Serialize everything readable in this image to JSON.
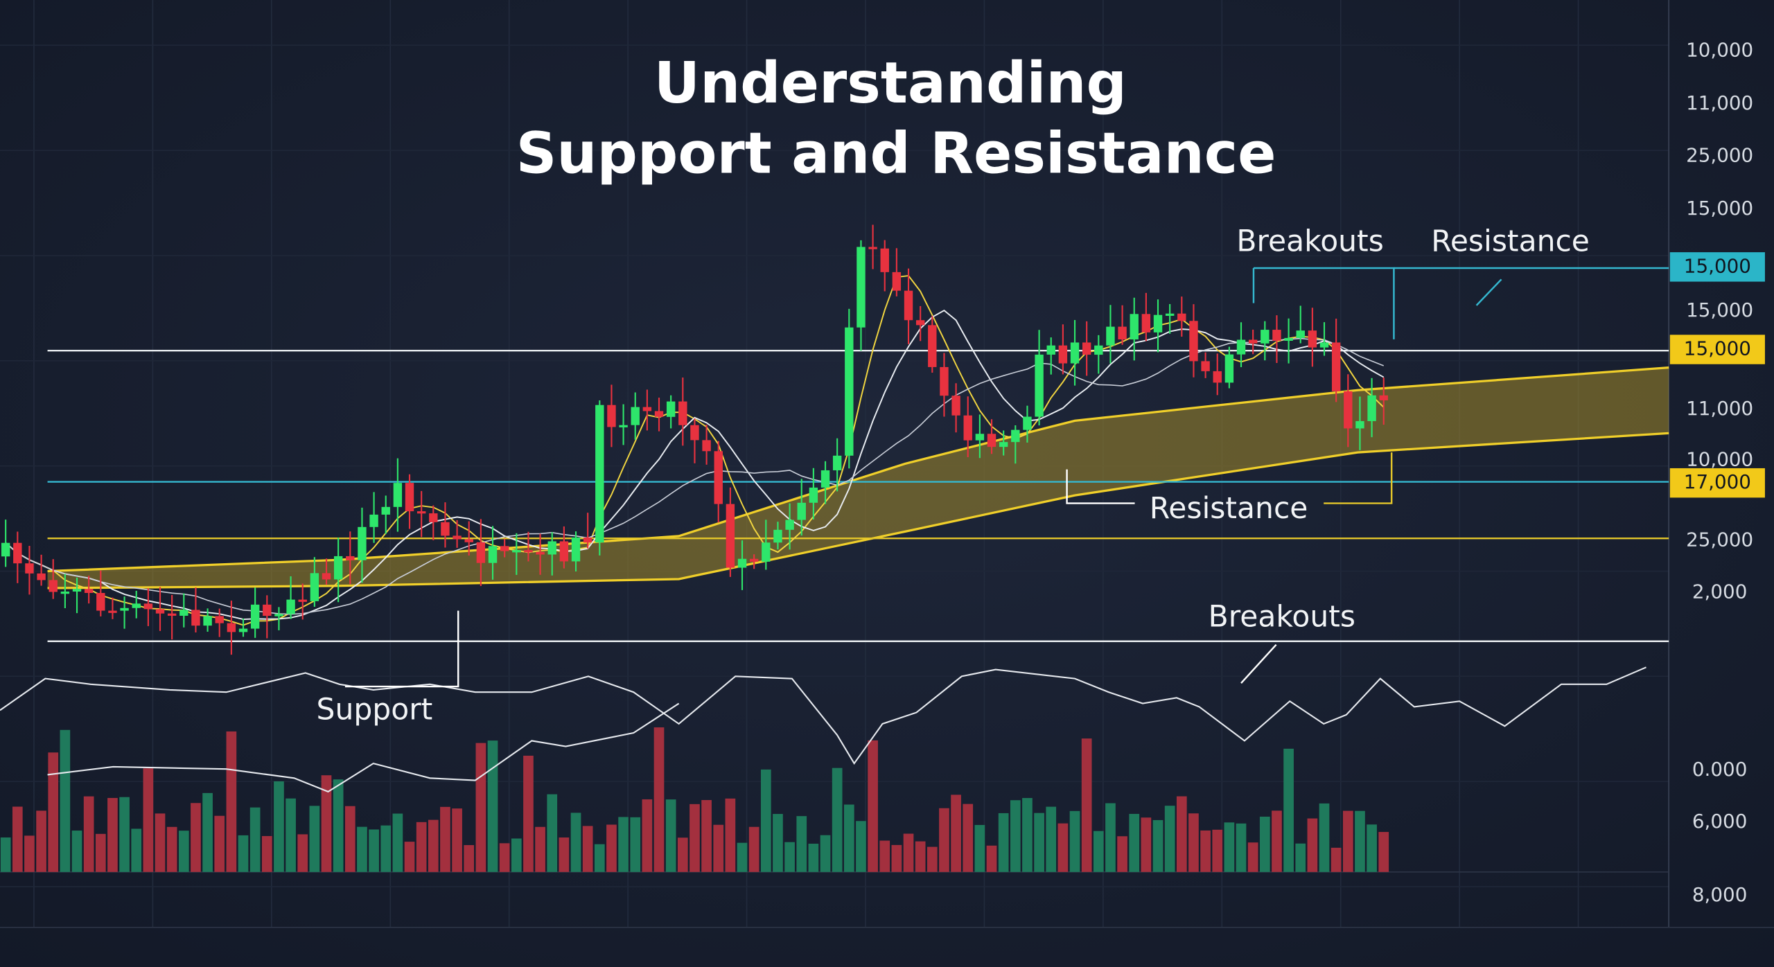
{
  "title_lines": [
    "Understanding",
    "Support and Resistance"
  ],
  "annotations": [
    "Breakouts",
    "Resistance",
    "Resistance",
    "Breakouts",
    "Support"
  ],
  "axis_labels": [
    "10,000",
    "11,000",
    "25,000",
    "15,000",
    "15,000",
    "11,000",
    "10,000",
    "25,000",
    "2,000",
    "0.000",
    "6,000",
    "8,000"
  ],
  "price_tags": [
    "15,000",
    "15,000",
    "17,000"
  ]
}
